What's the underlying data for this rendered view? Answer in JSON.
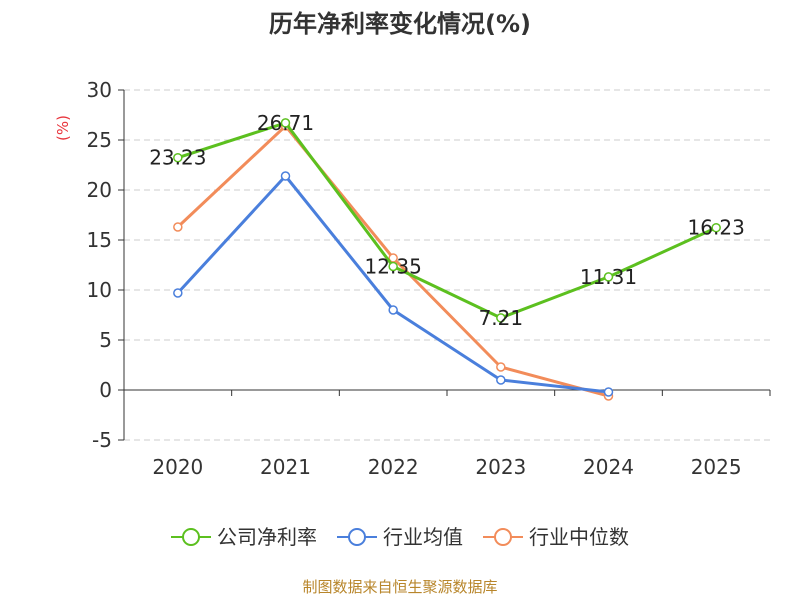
{
  "chart_data": {
    "type": "line",
    "title": "历年净利率变化情况(%)",
    "ylabel": "(%)",
    "xlabel": "",
    "categories": [
      "2020",
      "2021",
      "2022",
      "2023",
      "2024",
      "2025"
    ],
    "ylim": [
      -5,
      30
    ],
    "yticks": [
      30,
      25,
      20,
      15,
      10,
      5,
      0,
      -5
    ],
    "grid": true,
    "legend_position": "bottom",
    "series": [
      {
        "name": "公司净利率",
        "color": "#5cc01f",
        "values": [
          23.23,
          26.71,
          12.35,
          7.21,
          11.31,
          16.23
        ],
        "labels": [
          "23.23",
          "26.71",
          "12.35",
          "7.21",
          "11.31",
          "16.23"
        ]
      },
      {
        "name": "行业均值",
        "color": "#4a7fdc",
        "values": [
          9.7,
          21.4,
          8.0,
          1.0,
          -0.2,
          null
        ]
      },
      {
        "name": "行业中位数",
        "color": "#f28c5a",
        "values": [
          16.3,
          26.4,
          13.2,
          2.3,
          -0.6,
          null
        ]
      }
    ],
    "source": "制图数据来自恒生聚源数据库"
  }
}
